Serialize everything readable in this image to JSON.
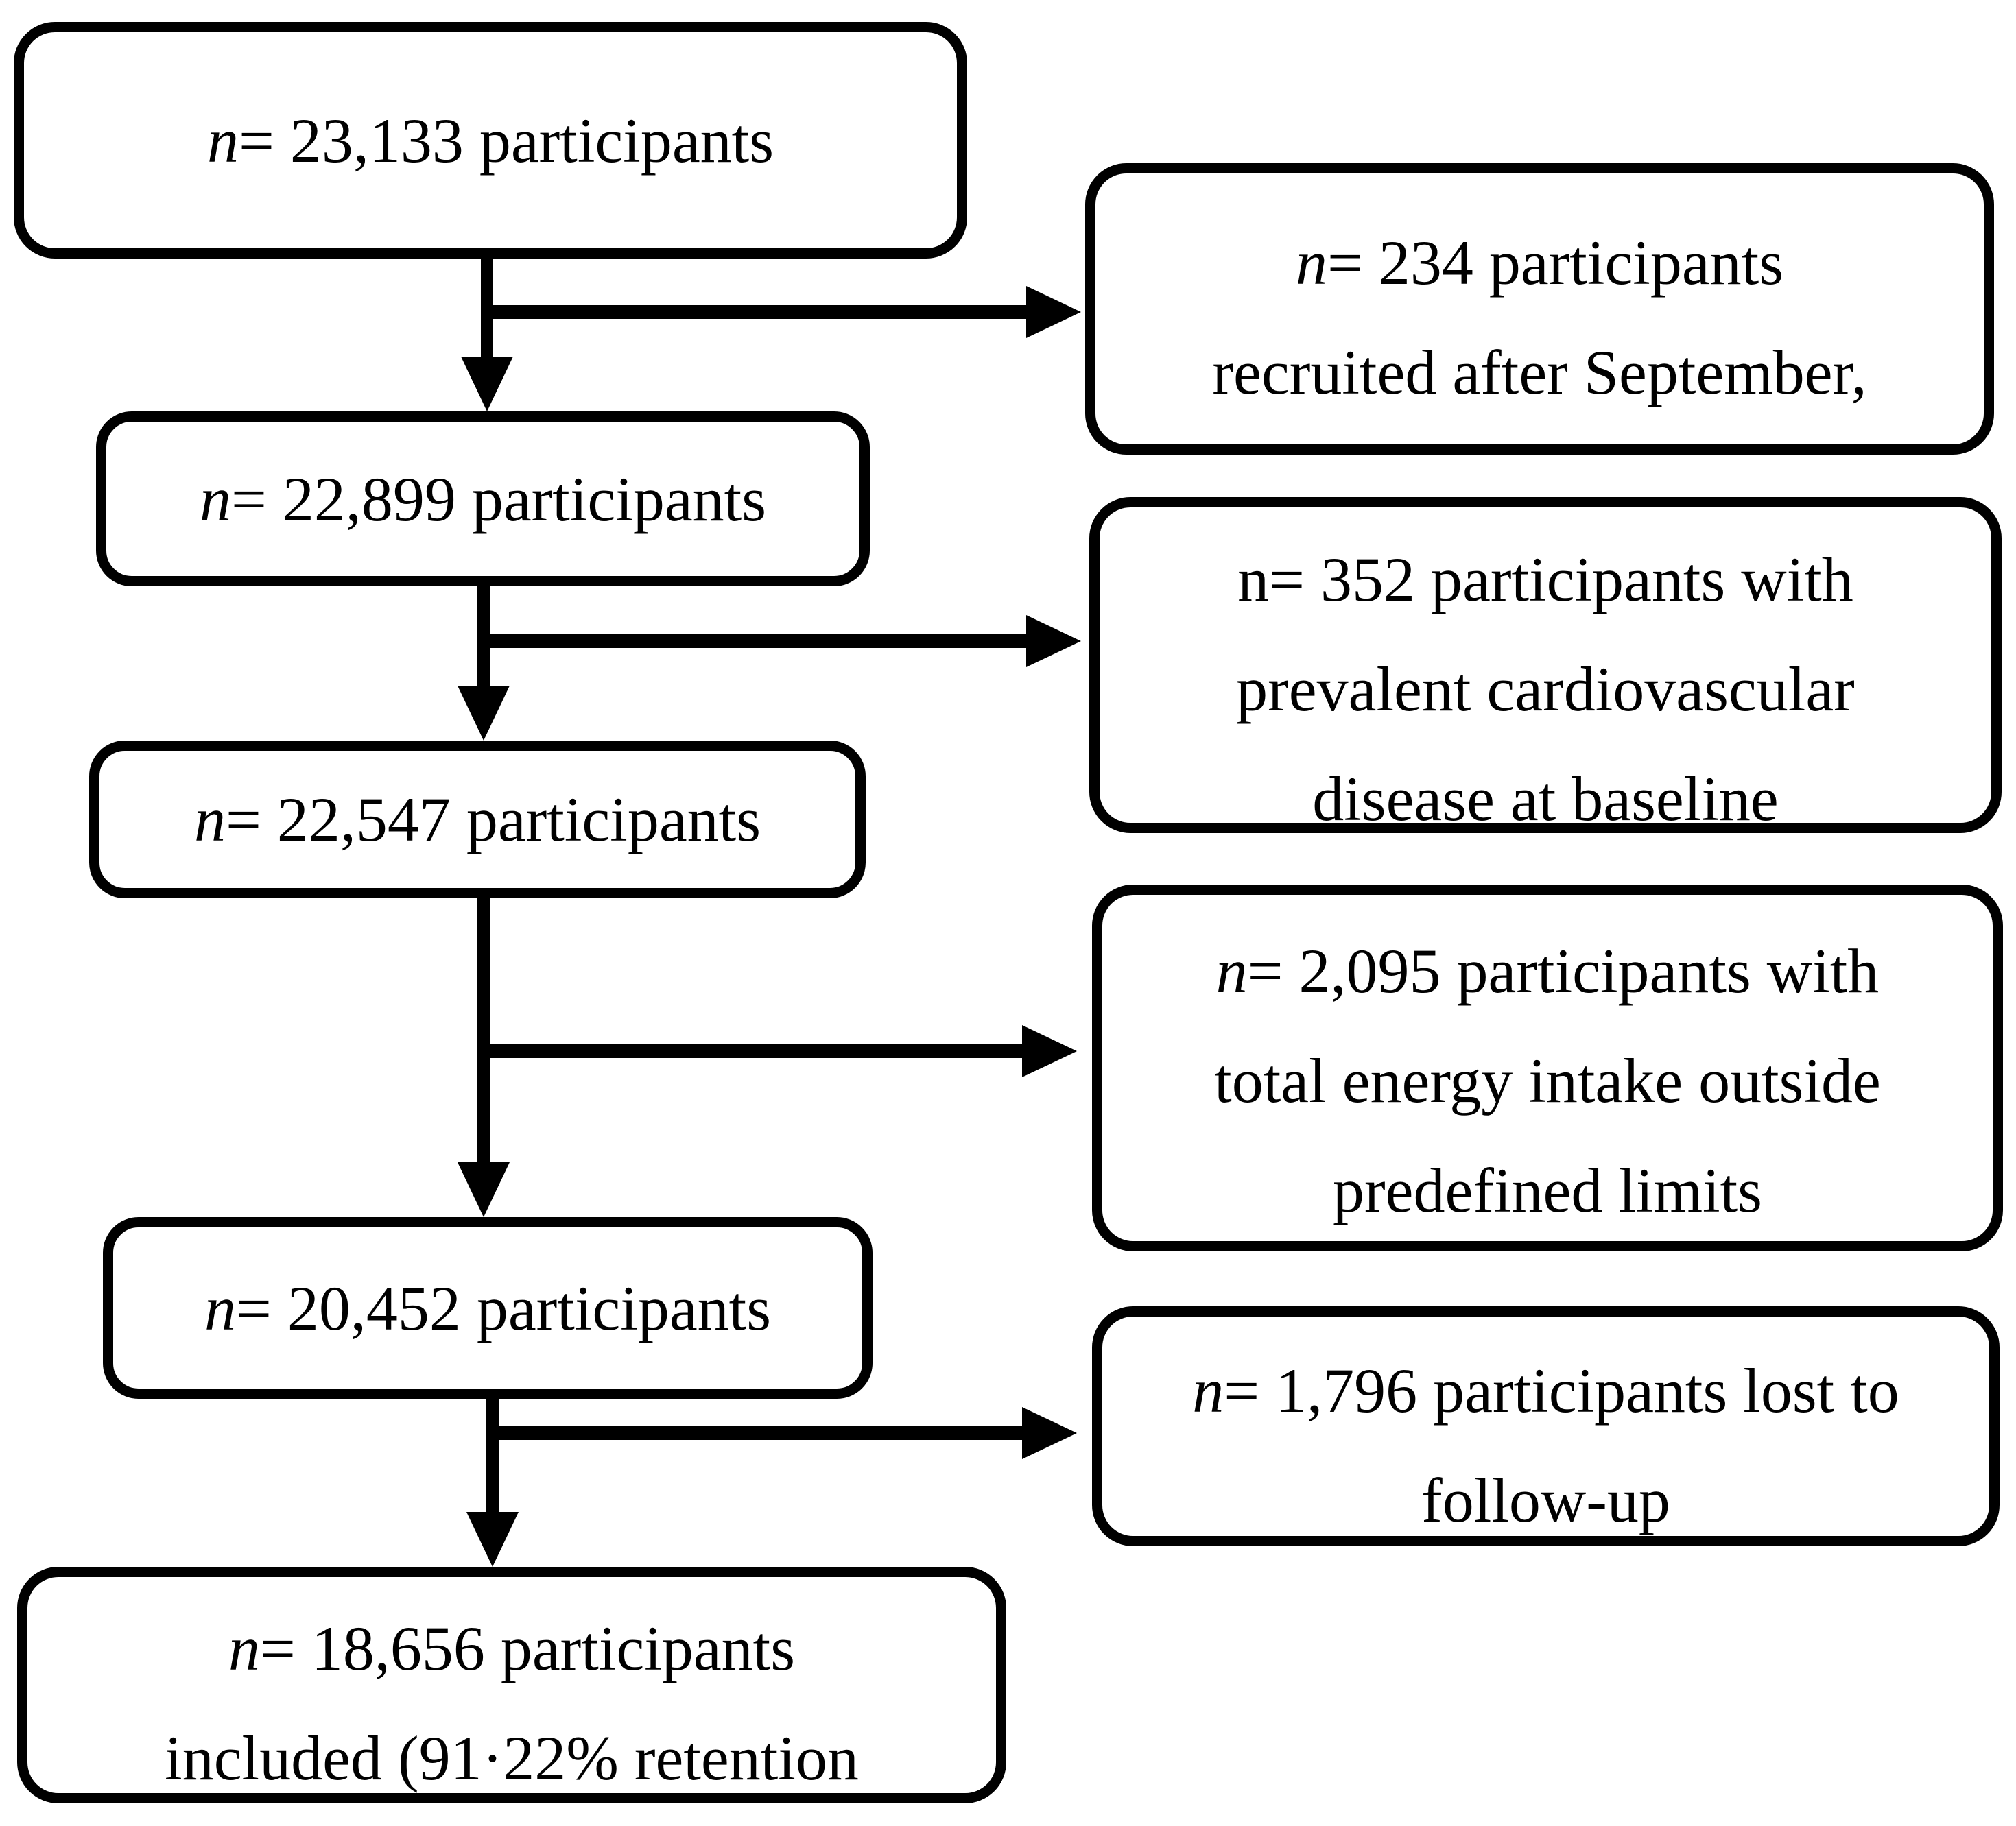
{
  "figure": {
    "type": "participant-flow-diagram",
    "colors": {
      "ink": "#000000",
      "background": "#ffffff"
    }
  },
  "main_flow": [
    {
      "n": "n",
      "n_style": "italic",
      "eq": "= 23,133 participants"
    },
    {
      "n": "n",
      "n_style": "italic",
      "eq": "= 22,899 participants"
    },
    {
      "n": "n",
      "n_style": "italic",
      "eq": "= 22,547 participants"
    },
    {
      "n": "n",
      "n_style": "italic",
      "eq": "= 20,452 participants"
    },
    {
      "n": "n",
      "n_style": "italic",
      "eq": "= 18,656 participants",
      "extra_lines": [
        "included (91·22% retention"
      ]
    }
  ],
  "exclusions": [
    {
      "n": "n",
      "n_style": "italic",
      "eq": "= 234 participants",
      "extra_lines": [
        "recruited after September,"
      ]
    },
    {
      "n": "n",
      "n_style": "normal",
      "eq": "= 352 participants with",
      "extra_lines": [
        "prevalent cardiovascular",
        "disease at baseline"
      ]
    },
    {
      "n": "n",
      "n_style": "italic",
      "eq": "= 2,095 participants with",
      "extra_lines": [
        "total energy intake outside",
        "predefined limits"
      ]
    },
    {
      "n": "n",
      "n_style": "italic",
      "eq": "= 1,796 participants lost to",
      "extra_lines": [
        "follow-up"
      ]
    }
  ]
}
